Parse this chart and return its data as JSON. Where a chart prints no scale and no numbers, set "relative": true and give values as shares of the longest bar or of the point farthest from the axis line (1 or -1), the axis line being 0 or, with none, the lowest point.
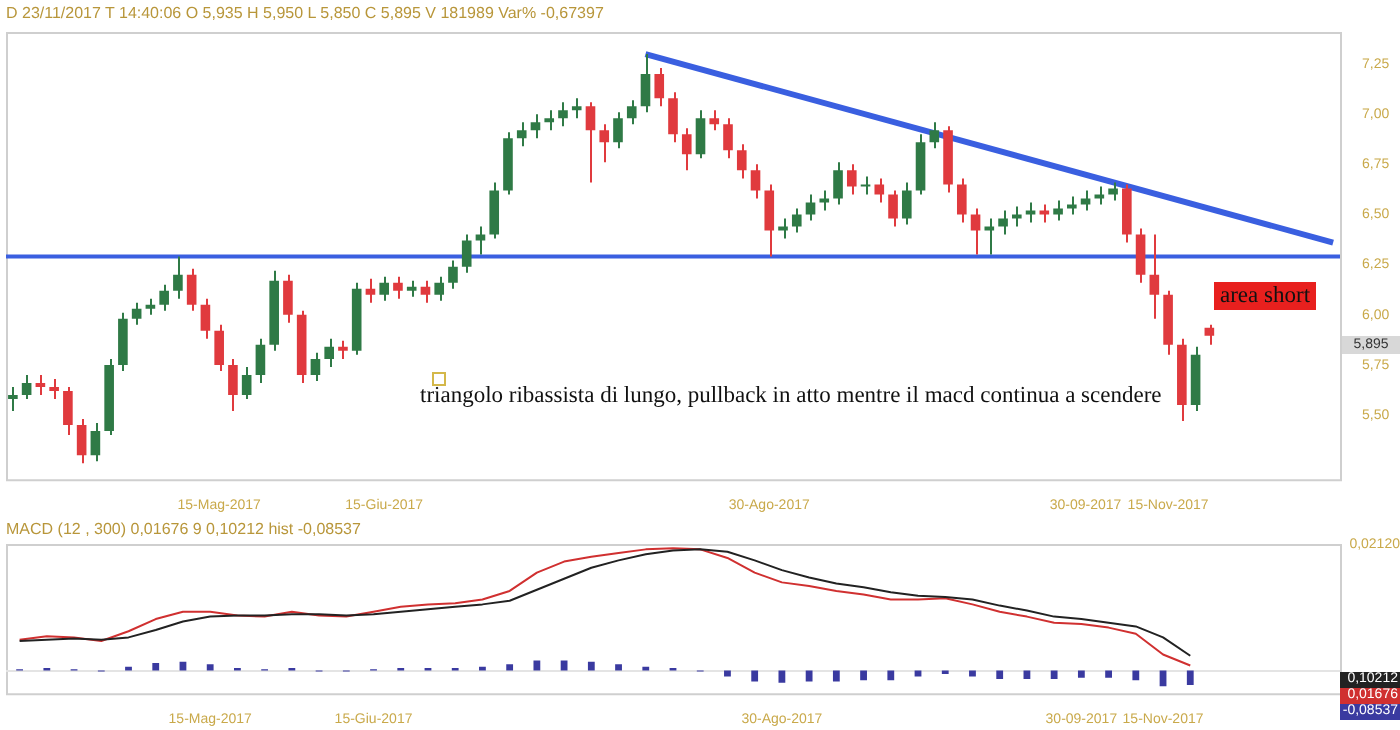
{
  "chart_data": [
    {
      "type": "candlestick",
      "subtitle": "D 23/11/2017  T 14:40:06  O 5,935  H 5,950  L 5,850  C 5,895  V 181989  Var% -0,67397",
      "categories": [
        null,
        null,
        null,
        null,
        null,
        null,
        null,
        null,
        null,
        null,
        null,
        null,
        null,
        null,
        null,
        "15-Mag-2017",
        null,
        null,
        null,
        null,
        null,
        null,
        null,
        null,
        null,
        null,
        null,
        "15-Giu-2017",
        null,
        null,
        null,
        null,
        null,
        null,
        null,
        null,
        null,
        null,
        null,
        null,
        null,
        null,
        null,
        null,
        null,
        null,
        null,
        null,
        null,
        null,
        null,
        null,
        null,
        null,
        null,
        "30-Ago-2017",
        null,
        null,
        null,
        null,
        null,
        null,
        null,
        null,
        null,
        null,
        null,
        null,
        null,
        null,
        null,
        null,
        null,
        null,
        null,
        null,
        null,
        null,
        "30-09-2017",
        null,
        null,
        null,
        null,
        null,
        "15-Nov-2017",
        null,
        null,
        null,
        null,
        null,
        null,
        null,
        null,
        null,
        null,
        null,
        null
      ],
      "ohlc": [
        [
          5.58,
          5.64,
          5.52,
          5.6
        ],
        [
          5.6,
          5.7,
          5.58,
          5.66
        ],
        [
          5.66,
          5.7,
          5.6,
          5.64
        ],
        [
          5.64,
          5.68,
          5.58,
          5.62
        ],
        [
          5.62,
          5.64,
          5.4,
          5.45
        ],
        [
          5.45,
          5.48,
          5.26,
          5.3
        ],
        [
          5.3,
          5.46,
          5.27,
          5.42
        ],
        [
          5.42,
          5.78,
          5.4,
          5.75
        ],
        [
          5.75,
          6.01,
          5.72,
          5.98
        ],
        [
          5.98,
          6.06,
          5.95,
          6.03
        ],
        [
          6.03,
          6.08,
          6.0,
          6.05
        ],
        [
          6.05,
          6.15,
          6.02,
          6.12
        ],
        [
          6.12,
          6.29,
          6.08,
          6.2
        ],
        [
          6.2,
          6.23,
          6.02,
          6.05
        ],
        [
          6.05,
          6.08,
          5.88,
          5.92
        ],
        [
          5.92,
          5.95,
          5.72,
          5.75
        ],
        [
          5.75,
          5.78,
          5.52,
          5.6
        ],
        [
          5.6,
          5.74,
          5.58,
          5.7
        ],
        [
          5.7,
          5.88,
          5.66,
          5.85
        ],
        [
          5.85,
          6.22,
          5.82,
          6.17
        ],
        [
          6.17,
          6.2,
          5.96,
          6.0
        ],
        [
          6.0,
          6.02,
          5.66,
          5.7
        ],
        [
          5.7,
          5.81,
          5.67,
          5.78
        ],
        [
          5.78,
          5.88,
          5.74,
          5.84
        ],
        [
          5.84,
          5.87,
          5.78,
          5.82
        ],
        [
          5.82,
          6.16,
          5.8,
          6.13
        ],
        [
          6.13,
          6.18,
          6.06,
          6.1
        ],
        [
          6.1,
          6.19,
          6.07,
          6.16
        ],
        [
          6.16,
          6.19,
          6.08,
          6.12
        ],
        [
          6.12,
          6.17,
          6.09,
          6.14
        ],
        [
          6.14,
          6.17,
          6.06,
          6.1
        ],
        [
          6.1,
          6.19,
          6.07,
          6.16
        ],
        [
          6.16,
          6.27,
          6.13,
          6.24
        ],
        [
          6.24,
          6.4,
          6.21,
          6.37
        ],
        [
          6.37,
          6.44,
          6.3,
          6.4
        ],
        [
          6.4,
          6.66,
          6.38,
          6.62
        ],
        [
          6.62,
          6.91,
          6.6,
          6.88
        ],
        [
          6.88,
          6.96,
          6.84,
          6.92
        ],
        [
          6.92,
          7.0,
          6.88,
          6.96
        ],
        [
          6.96,
          7.02,
          6.92,
          6.98
        ],
        [
          6.98,
          7.06,
          6.94,
          7.02
        ],
        [
          7.02,
          7.08,
          6.98,
          7.04
        ],
        [
          7.04,
          7.06,
          6.66,
          6.92
        ],
        [
          6.92,
          6.95,
          6.76,
          6.86
        ],
        [
          6.86,
          7.01,
          6.83,
          6.98
        ],
        [
          6.98,
          7.07,
          6.95,
          7.04
        ],
        [
          7.04,
          7.3,
          7.01,
          7.2
        ],
        [
          7.2,
          7.23,
          7.04,
          7.08
        ],
        [
          7.08,
          7.11,
          6.86,
          6.9
        ],
        [
          6.9,
          6.93,
          6.72,
          6.8
        ],
        [
          6.8,
          7.02,
          6.78,
          6.98
        ],
        [
          6.98,
          7.02,
          6.92,
          6.95
        ],
        [
          6.95,
          6.98,
          6.78,
          6.82
        ],
        [
          6.82,
          6.85,
          6.68,
          6.72
        ],
        [
          6.72,
          6.75,
          6.58,
          6.62
        ],
        [
          6.62,
          6.65,
          6.29,
          6.42
        ],
        [
          6.42,
          6.48,
          6.38,
          6.44
        ],
        [
          6.44,
          6.53,
          6.41,
          6.5
        ],
        [
          6.5,
          6.6,
          6.47,
          6.56
        ],
        [
          6.56,
          6.62,
          6.52,
          6.58
        ],
        [
          6.58,
          6.76,
          6.55,
          6.72
        ],
        [
          6.72,
          6.75,
          6.6,
          6.64
        ],
        [
          6.64,
          6.69,
          6.6,
          6.65
        ],
        [
          6.65,
          6.68,
          6.56,
          6.6
        ],
        [
          6.6,
          6.62,
          6.44,
          6.48
        ],
        [
          6.48,
          6.66,
          6.45,
          6.62
        ],
        [
          6.62,
          6.9,
          6.6,
          6.86
        ],
        [
          6.86,
          6.96,
          6.83,
          6.92
        ],
        [
          6.92,
          6.94,
          6.61,
          6.65
        ],
        [
          6.65,
          6.68,
          6.46,
          6.5
        ],
        [
          6.5,
          6.53,
          6.3,
          6.42
        ],
        [
          6.42,
          6.48,
          6.3,
          6.44
        ],
        [
          6.44,
          6.52,
          6.4,
          6.48
        ],
        [
          6.48,
          6.54,
          6.44,
          6.5
        ],
        [
          6.5,
          6.56,
          6.46,
          6.52
        ],
        [
          6.52,
          6.55,
          6.46,
          6.5
        ],
        [
          6.5,
          6.57,
          6.47,
          6.53
        ],
        [
          6.53,
          6.59,
          6.5,
          6.55
        ],
        [
          6.55,
          6.62,
          6.52,
          6.58
        ],
        [
          6.58,
          6.64,
          6.55,
          6.6
        ],
        [
          6.6,
          6.66,
          6.57,
          6.63
        ],
        [
          6.63,
          6.65,
          6.36,
          6.4
        ],
        [
          6.4,
          6.43,
          6.16,
          6.2
        ],
        [
          6.2,
          6.4,
          5.98,
          6.1
        ],
        [
          6.1,
          6.12,
          5.8,
          5.85
        ],
        [
          5.85,
          5.88,
          5.47,
          5.55
        ],
        [
          5.55,
          5.84,
          5.52,
          5.8
        ],
        [
          5.935,
          5.95,
          5.85,
          5.895
        ],
        null,
        null,
        null,
        null,
        null,
        null,
        null,
        null,
        null
      ],
      "colors": [
        "#2f7a46",
        "#2f7a46",
        "#e03a3e",
        "#e03a3e",
        "#e03a3e",
        "#e03a3e",
        "#2f7a46",
        "#2f7a46",
        "#2f7a46",
        "#2f7a46",
        "#2f7a46",
        "#2f7a46",
        "#2f7a46",
        "#e03a3e",
        "#e03a3e",
        "#e03a3e",
        "#e03a3e",
        "#2f7a46",
        "#2f7a46",
        "#2f7a46",
        "#e03a3e",
        "#e03a3e",
        "#2f7a46",
        "#2f7a46",
        "#e03a3e",
        "#2f7a46",
        "#e03a3e",
        "#2f7a46",
        "#e03a3e",
        "#2f7a46",
        "#e03a3e",
        "#2f7a46",
        "#2f7a46",
        "#2f7a46",
        "#2f7a46",
        "#2f7a46",
        "#2f7a46",
        "#2f7a46",
        "#2f7a46",
        "#2f7a46",
        "#2f7a46",
        "#2f7a46",
        "#e03a3e",
        "#e03a3e",
        "#2f7a46",
        "#2f7a46",
        "#2f7a46",
        "#e03a3e",
        "#e03a3e",
        "#e03a3e",
        "#2f7a46",
        "#e03a3e",
        "#e03a3e",
        "#e03a3e",
        "#e03a3e",
        "#e03a3e",
        "#2f7a46",
        "#2f7a46",
        "#2f7a46",
        "#2f7a46",
        "#2f7a46",
        "#e03a3e",
        "#2f7a46",
        "#e03a3e",
        "#e03a3e",
        "#2f7a46",
        "#2f7a46",
        "#2f7a46",
        "#e03a3e",
        "#e03a3e",
        "#e03a3e",
        "#2f7a46",
        "#2f7a46",
        "#2f7a46",
        "#2f7a46",
        "#e03a3e",
        "#2f7a46",
        "#2f7a46",
        "#2f7a46",
        "#2f7a46",
        "#2f7a46",
        "#e03a3e",
        "#e03a3e",
        "#e03a3e",
        "#e03a3e",
        "#e03a3e",
        "#2f7a46",
        "#e03a3e",
        null,
        null,
        null,
        null,
        null,
        null,
        null,
        null,
        null
      ],
      "series": [
        {
          "type": "line",
          "color": "#3a5fe0",
          "values": [
            null,
            null,
            null,
            null,
            null,
            null,
            null,
            null,
            null,
            null,
            null,
            null,
            null,
            null,
            null,
            null,
            null,
            null,
            null,
            null,
            null,
            null,
            null,
            null,
            null,
            null,
            null,
            null,
            null,
            null,
            null,
            null,
            null,
            null,
            null,
            null,
            null,
            null,
            null,
            null,
            null,
            null,
            null,
            null,
            null,
            null,
            7.3,
            null,
            null,
            null,
            null,
            null,
            null,
            null,
            null,
            null,
            null,
            null,
            null,
            null,
            null,
            null,
            null,
            null,
            null,
            null,
            null,
            null,
            null,
            null,
            null,
            null,
            null,
            null,
            null,
            null,
            null,
            null,
            null,
            null,
            null,
            null,
            null,
            null,
            null,
            null,
            null,
            null,
            null,
            null,
            null,
            null,
            null,
            null,
            null,
            null,
            6.36
          ]
        }
      ],
      "ylim": [
        5.18,
        7.41
      ],
      "yticks": [
        {
          "value": 5.5,
          "label": "5,50"
        },
        {
          "value": 5.75,
          "label": "5,75"
        },
        {
          "value": 6,
          "label": "6,00"
        },
        {
          "value": 6.25,
          "label": "6,25"
        },
        {
          "value": 6.5,
          "label": "6,50"
        },
        {
          "value": 6.75,
          "label": "6,75"
        },
        {
          "value": 7,
          "label": "7,00"
        },
        {
          "value": 7.25,
          "label": "7,25"
        }
      ],
      "ref_lines": [
        {
          "axis": "y",
          "value": 6.29,
          "color": "#3a5fe0"
        }
      ],
      "annotations": [
        "triangolo ribassista di lungo, pullback in atto mentre il macd continua a scendere",
        "area short",
        "5,895"
      ]
    },
    {
      "type": "line",
      "title": "MACD   (12 , 300)  0,01676   9   0,10212   hist   -0,08537",
      "relative": true,
      "categories": [
        null,
        null,
        null,
        null,
        null,
        null,
        null,
        "15-Mag-2017",
        null,
        null,
        null,
        null,
        null,
        "15-Giu-2017",
        null,
        null,
        null,
        null,
        null,
        null,
        null,
        null,
        null,
        null,
        null,
        null,
        null,
        null,
        "30-Ago-2017",
        null,
        null,
        null,
        null,
        null,
        null,
        null,
        null,
        null,
        null,
        "30-09-2017",
        null,
        null,
        "15-Nov-2017",
        null,
        null,
        null,
        null,
        null,
        null
      ],
      "series": [
        {
          "color": "#222222",
          "values": [
            0.24,
            0.25,
            0.26,
            0.25,
            0.27,
            0.33,
            0.4,
            0.44,
            0.45,
            0.45,
            0.46,
            0.46,
            0.45,
            0.46,
            0.48,
            0.5,
            0.52,
            0.54,
            0.57,
            0.66,
            0.75,
            0.84,
            0.9,
            0.95,
            0.98,
            0.99,
            0.97,
            0.9,
            0.82,
            0.76,
            0.71,
            0.68,
            0.64,
            0.61,
            0.6,
            0.58,
            0.53,
            0.49,
            0.44,
            0.42,
            0.39,
            0.36,
            0.27,
            0.12,
            null,
            null,
            null,
            null,
            null
          ]
        },
        {
          "color": "#d03030",
          "values": [
            0.25,
            0.28,
            0.27,
            0.24,
            0.32,
            0.42,
            0.48,
            0.48,
            0.45,
            0.44,
            0.48,
            0.45,
            0.44,
            0.48,
            0.52,
            0.54,
            0.55,
            0.58,
            0.65,
            0.8,
            0.89,
            0.93,
            0.96,
            0.99,
            1.0,
            0.99,
            0.92,
            0.8,
            0.72,
            0.69,
            0.65,
            0.62,
            0.58,
            0.58,
            0.59,
            0.54,
            0.48,
            0.44,
            0.39,
            0.38,
            0.35,
            0.3,
            0.13,
            0.04,
            null,
            null,
            null,
            null,
            null
          ]
        },
        {
          "type": "bar",
          "color": "#3a3aa0",
          "values": [
            0.01,
            0.02,
            0.01,
            -0.01,
            0.03,
            0.06,
            0.07,
            0.05,
            0.02,
            0.01,
            0.02,
            -0.01,
            -0.01,
            0.01,
            0.02,
            0.02,
            0.02,
            0.03,
            0.05,
            0.08,
            0.08,
            0.07,
            0.05,
            0.03,
            0.02,
            -0.01,
            -0.05,
            -0.09,
            -0.1,
            -0.09,
            -0.09,
            -0.08,
            -0.08,
            -0.05,
            -0.03,
            -0.05,
            -0.07,
            -0.07,
            -0.07,
            -0.06,
            -0.06,
            -0.08,
            -0.13,
            -0.12,
            null,
            null,
            null,
            null,
            null
          ]
        }
      ],
      "annotations": [
        "0,02120",
        "0,10212",
        "0,01676",
        "-0,08537"
      ]
    }
  ]
}
